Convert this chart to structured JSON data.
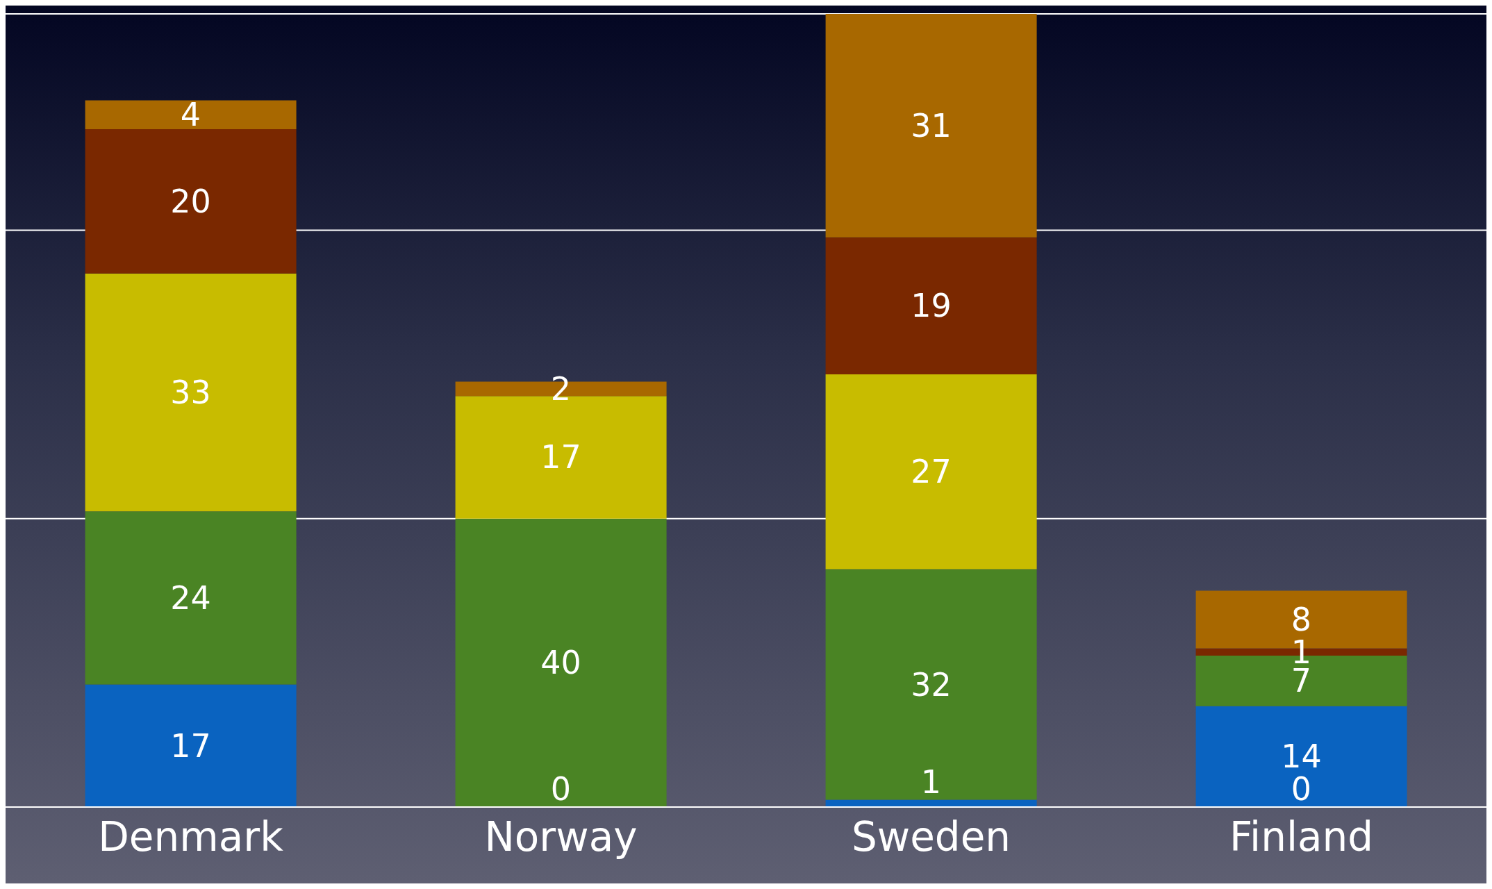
{
  "chart_data": {
    "type": "bar",
    "stacked": true,
    "categories": [
      "Denmark",
      "Norway",
      "Sweden",
      "Finland"
    ],
    "series": [
      {
        "color": "#0a63c0",
        "values": [
          17,
          0,
          1,
          14
        ],
        "value_labels": [
          "17",
          null,
          "1",
          "14"
        ]
      },
      {
        "color": "#4a8424",
        "values": [
          24,
          40,
          32,
          7
        ],
        "value_labels": [
          "24",
          "40",
          "32",
          "7"
        ]
      },
      {
        "color": "#c8bc00",
        "values": [
          33,
          17,
          27,
          0
        ],
        "value_labels": [
          "33",
          "17",
          "27",
          null
        ]
      },
      {
        "color": "#7a2800",
        "values": [
          20,
          0,
          19,
          1
        ],
        "value_labels": [
          "20",
          null,
          "19",
          "1"
        ]
      },
      {
        "color": "#a86800",
        "values": [
          4,
          2,
          31,
          8
        ],
        "value_labels": [
          "4",
          "2",
          "31",
          "8"
        ]
      }
    ],
    "annotations": [
      {
        "text": "0",
        "x": "Norway",
        "y": 0
      },
      {
        "text": "0",
        "x": "Finland",
        "y": 0
      }
    ],
    "ylim": [
      0,
      110
    ],
    "yticks": [
      {
        "value": 0,
        "label": null
      },
      {
        "value": 40,
        "label": null
      },
      {
        "value": 80,
        "label": null
      }
    ],
    "grid": "y",
    "tick_labels": "x",
    "legend": false
  }
}
